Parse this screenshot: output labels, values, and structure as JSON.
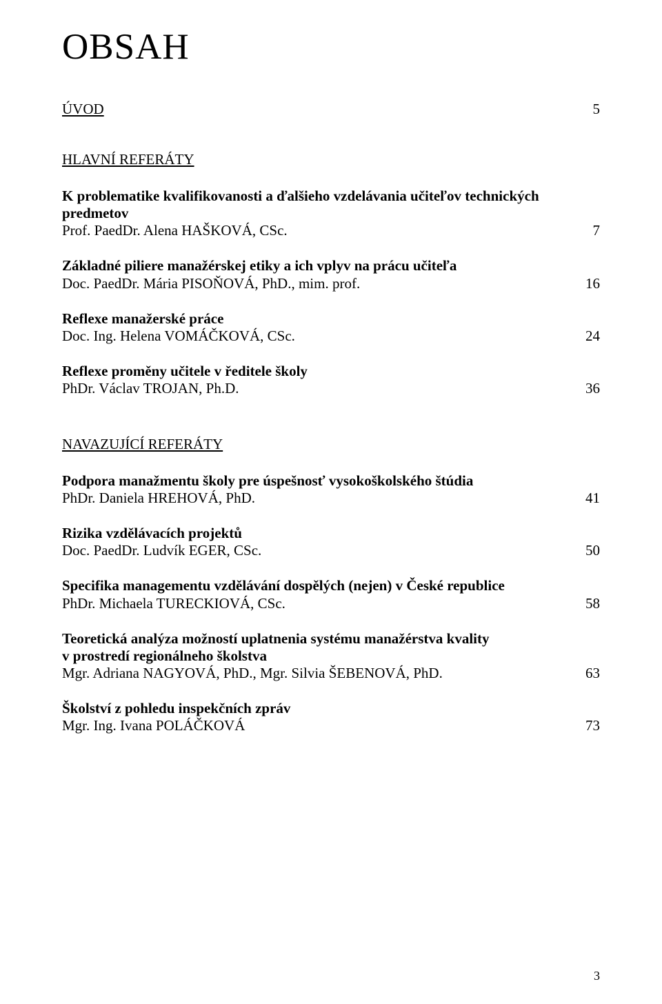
{
  "title": "OBSAH",
  "section1_label": "ÚVOD",
  "section1_page": "5",
  "section2_label": "HLAVNÍ REFERÁTY",
  "section3_label": "NAVAZUJÍCÍ REFERÁTY",
  "entries_main": [
    {
      "title_lines": [
        "K problematike kvalifikovanosti a ďalšieho vzdelávania učiteľov technických",
        "predmetov"
      ],
      "author": "Prof. PaedDr. Alena HAŠKOVÁ, CSc.",
      "page": "7"
    },
    {
      "title_lines": [
        "Základné piliere manažérskej etiky a ich vplyv na prácu učiteľa"
      ],
      "author": "Doc. PaedDr. Mária PISOŇOVÁ, PhD., mim. prof.",
      "page": "16"
    },
    {
      "title_lines": [
        "Reflexe manažerské práce"
      ],
      "author": "Doc. Ing. Helena VOMÁČKOVÁ, CSc.",
      "page": "24"
    },
    {
      "title_lines": [
        "Reflexe proměny učitele v ředitele školy"
      ],
      "author": "PhDr. Václav TROJAN, Ph.D.",
      "page": "36"
    }
  ],
  "entries_nav": [
    {
      "title_lines": [
        "Podpora manažmentu školy pre úspešnosť vysokoškolského štúdia"
      ],
      "author": "PhDr. Daniela HREHOVÁ, PhD.",
      "page": "41"
    },
    {
      "title_lines": [
        "Rizika vzdělávacích projektů"
      ],
      "author": "Doc. PaedDr. Ludvík EGER, CSc.",
      "page": "50"
    },
    {
      "title_lines": [
        "Specifika managementu vzdělávání dospělých (nejen) v České republice"
      ],
      "author": "PhDr. Michaela TURECKIOVÁ, CSc.",
      "page": "58"
    },
    {
      "title_lines": [
        "Teoretická analýza možností uplatnenia systému manažérstva kvality",
        "v prostredí regionálneho školstva"
      ],
      "author": "Mgr. Adriana NAGYOVÁ, PhD., Mgr. Silvia ŠEBENOVÁ, PhD.",
      "page": "63"
    },
    {
      "title_lines": [
        "Školství z pohledu inspekčních zpráv"
      ],
      "author": "Mgr. Ing. Ivana POLÁČKOVÁ",
      "page": "73"
    }
  ],
  "footer_page": "3"
}
